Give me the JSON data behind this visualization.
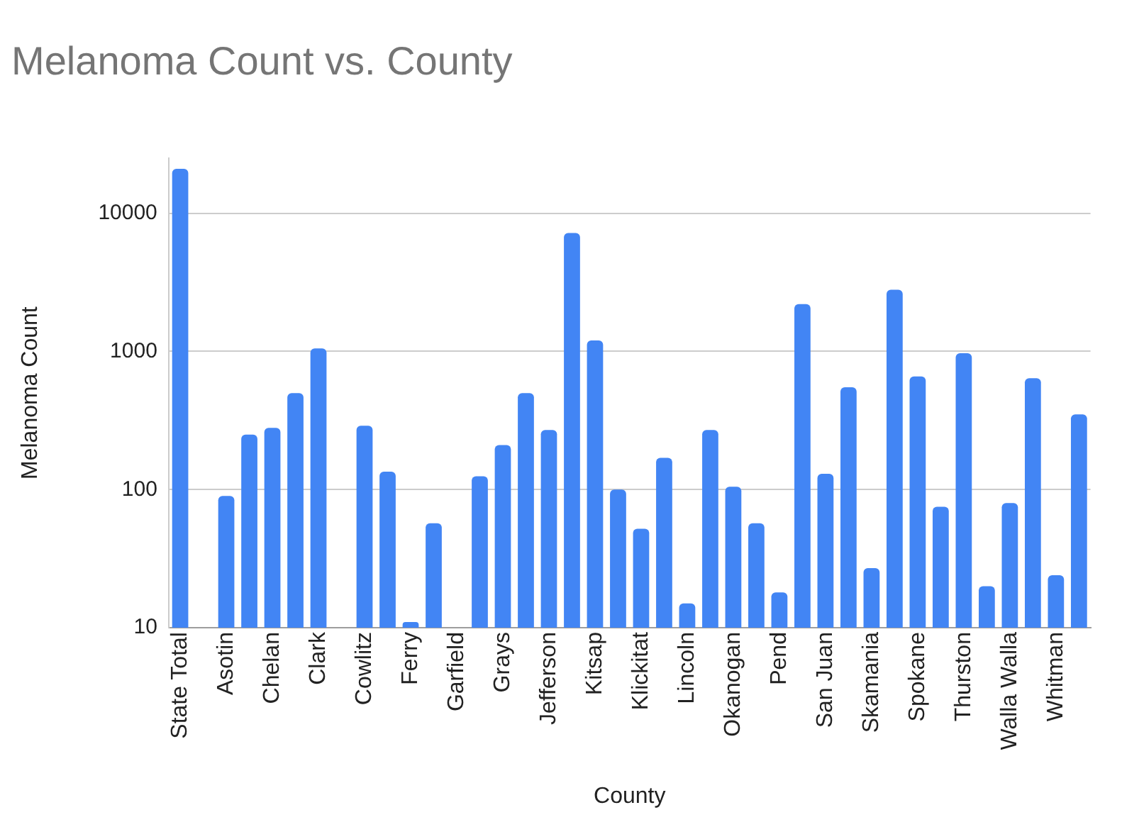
{
  "chart_data": {
    "type": "bar",
    "title": "Melanoma Count vs. County",
    "xlabel": "County",
    "ylabel": "Melanoma Count",
    "categories": [
      "State Total",
      null,
      "Asotin",
      null,
      "Chelan",
      null,
      "Clark",
      null,
      "Cowlitz",
      null,
      "Ferry",
      null,
      "Garfield",
      null,
      "Grays",
      null,
      "Jefferson",
      null,
      "Kitsap",
      null,
      "Klickitat",
      null,
      "Lincoln",
      null,
      "Okanogan",
      null,
      "Pend",
      null,
      "San Juan",
      null,
      "Skamania",
      null,
      "Spokane",
      null,
      "Thurston",
      null,
      "Walla Walla",
      null,
      "Whitman",
      null
    ],
    "values": [
      21000,
      null,
      90,
      250,
      280,
      500,
      1050,
      null,
      290,
      135,
      11,
      57,
      null,
      125,
      210,
      500,
      270,
      7200,
      1200,
      100,
      52,
      170,
      15,
      270,
      105,
      57,
      18,
      2200,
      130,
      550,
      27,
      2800,
      660,
      75,
      970,
      20,
      80,
      640,
      24,
      350
    ],
    "color": "#4285f4",
    "log": "y",
    "ylim": [
      10,
      25000
    ],
    "yticks": [
      10,
      100,
      1000,
      10000
    ],
    "grid": "y",
    "legend": false
  }
}
